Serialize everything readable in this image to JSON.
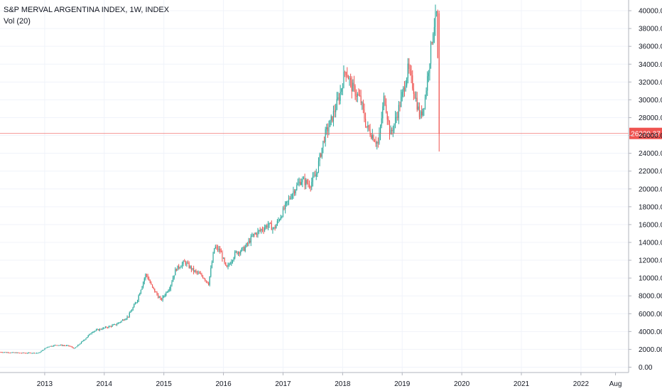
{
  "header": {
    "title": "S&P MERVAL ARGENTINA INDEX, 1W, INDEX",
    "volume_label": "Vol (20)"
  },
  "chart_data": {
    "type": "candlestick",
    "title": "S&P MERVAL ARGENTINA INDEX, 1W, INDEX",
    "xlabel": "",
    "ylabel": "",
    "ylim": [
      -600,
      41200
    ],
    "xlim": [
      2012.25,
      2022.8
    ],
    "y_ticks": [
      0,
      2000,
      4000,
      6000,
      8000,
      10000,
      12000,
      14000,
      16000,
      18000,
      20000,
      22000,
      24000,
      26000,
      28000,
      30000,
      32000,
      34000,
      36000,
      38000,
      40000
    ],
    "y_tick_labels": [
      "0.00",
      "2000.00",
      "4000.00",
      "6000.00",
      "8000.00",
      "10000.00",
      "12000.00",
      "14000.00",
      "16000.00",
      "18000.00",
      "20000.00",
      "22000.00",
      "24000.00",
      "26000.00",
      "28000.00",
      "30000.00",
      "32000.00",
      "34000.00",
      "36000.00",
      "38000.00",
      "40000.00"
    ],
    "x_ticks": [
      2013,
      2014,
      2015,
      2016,
      2017,
      2018,
      2019,
      2020,
      2021,
      2022,
      2022.58
    ],
    "x_tick_labels": [
      "2013",
      "2014",
      "2015",
      "2016",
      "2017",
      "2018",
      "2019",
      "2020",
      "2021",
      "2022",
      "Aug"
    ],
    "last_price": 26228.37,
    "last_price_label": "26228.37",
    "grid": true,
    "colors": {
      "up": "#26a69a",
      "down": "#ef5350",
      "price_line": "#ef5350",
      "grid": "#f0f3fa",
      "text": "#131722",
      "axis": "#b2b5be"
    },
    "anchors": [
      [
        2012.25,
        1700
      ],
      [
        2012.6,
        1600
      ],
      [
        2012.9,
        1600
      ],
      [
        2013.05,
        2300
      ],
      [
        2013.2,
        2500
      ],
      [
        2013.4,
        2400
      ],
      [
        2013.5,
        2100
      ],
      [
        2013.65,
        3000
      ],
      [
        2013.8,
        4000
      ],
      [
        2014.0,
        4400
      ],
      [
        2014.2,
        4800
      ],
      [
        2014.4,
        5700
      ],
      [
        2014.55,
        7500
      ],
      [
        2014.7,
        10500
      ],
      [
        2014.8,
        9000
      ],
      [
        2014.95,
        7500
      ],
      [
        2015.1,
        9000
      ],
      [
        2015.2,
        11000
      ],
      [
        2015.35,
        11800
      ],
      [
        2015.5,
        10800
      ],
      [
        2015.65,
        10200
      ],
      [
        2015.75,
        9400
      ],
      [
        2015.85,
        13500
      ],
      [
        2015.95,
        13000
      ],
      [
        2016.05,
        11000
      ],
      [
        2016.2,
        12800
      ],
      [
        2016.35,
        13300
      ],
      [
        2016.5,
        14800
      ],
      [
        2016.65,
        15500
      ],
      [
        2016.75,
        16000
      ],
      [
        2016.85,
        15500
      ],
      [
        2017.0,
        17500
      ],
      [
        2017.15,
        19500
      ],
      [
        2017.3,
        21000
      ],
      [
        2017.45,
        20500
      ],
      [
        2017.55,
        21500
      ],
      [
        2017.7,
        26000
      ],
      [
        2017.8,
        27500
      ],
      [
        2017.95,
        30500
      ],
      [
        2018.05,
        33500
      ],
      [
        2018.15,
        31500
      ],
      [
        2018.3,
        30000
      ],
      [
        2018.4,
        27000
      ],
      [
        2018.5,
        26000
      ],
      [
        2018.6,
        25000
      ],
      [
        2018.7,
        30500
      ],
      [
        2018.8,
        26000
      ],
      [
        2018.9,
        28000
      ],
      [
        2019.0,
        30500
      ],
      [
        2019.1,
        33500
      ],
      [
        2019.2,
        31000
      ],
      [
        2019.3,
        28000
      ],
      [
        2019.38,
        30000
      ],
      [
        2019.45,
        34000
      ],
      [
        2019.52,
        38000
      ],
      [
        2019.58,
        39700
      ],
      [
        2019.62,
        26228.37
      ]
    ]
  }
}
